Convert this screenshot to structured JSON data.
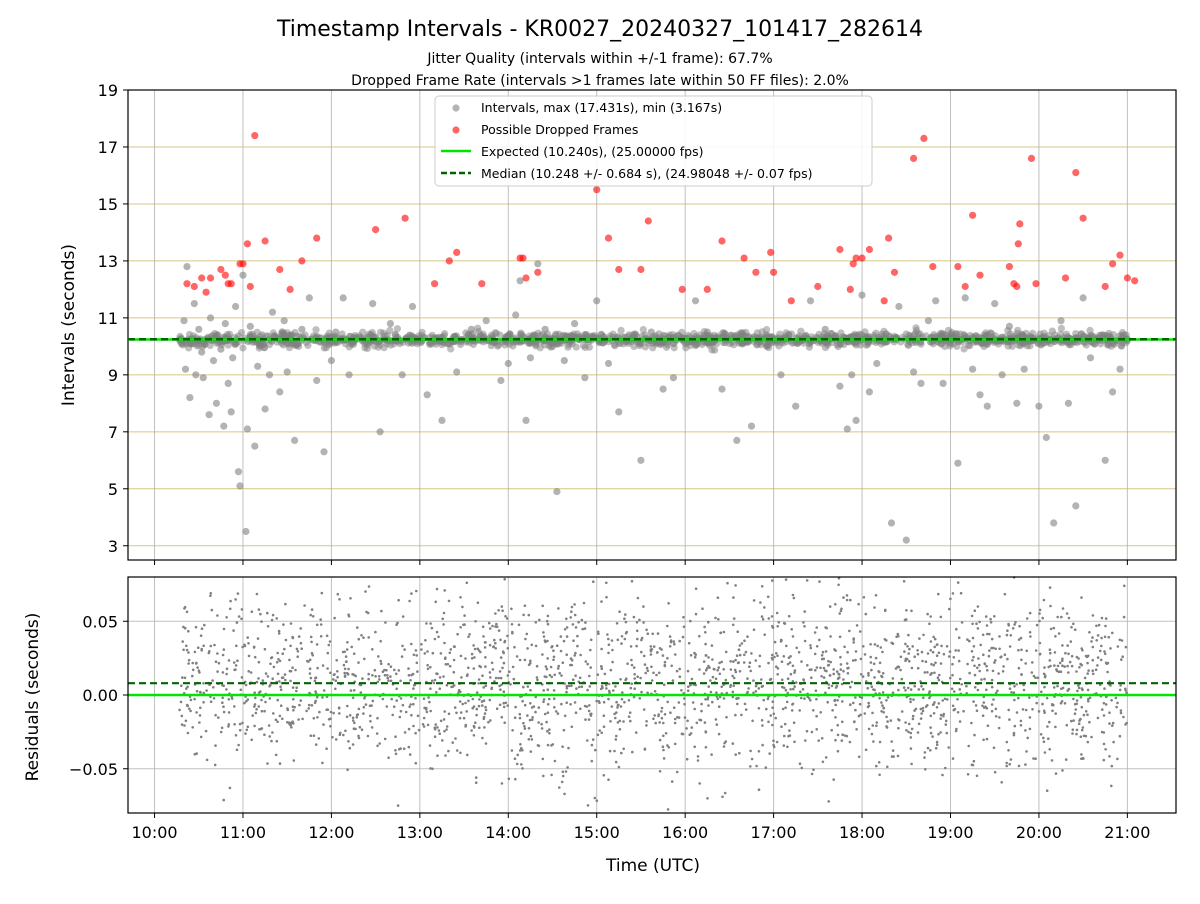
{
  "chart_data": [
    {
      "type": "scatter",
      "title": "Timestamp Intervals - KR0027_20240327_101417_282614",
      "subtitle_lines": [
        "Jitter Quality (intervals within +/-1 frame): 67.7%",
        "Dropped Frame Rate (intervals >1 frames late within 50 FF files): 2.0%"
      ],
      "xlabel": "",
      "ylabel": "Intervals (seconds)",
      "xlim": [
        "09:42",
        "21:33"
      ],
      "ylim": [
        2.5,
        19
      ],
      "x_ticks": [
        "10:00",
        "11:00",
        "12:00",
        "13:00",
        "14:00",
        "15:00",
        "16:00",
        "17:00",
        "18:00",
        "19:00",
        "20:00",
        "21:00"
      ],
      "y_ticks": [
        3,
        5,
        7,
        9,
        11,
        13,
        15,
        17,
        19
      ],
      "grid": true,
      "legend_placement": "upper-center",
      "series": [
        {
          "name": "Intervals, max (17.431s), min (3.167s)",
          "kind": "scatter",
          "color": "#808080",
          "x": [
            "10:20",
            "10:21",
            "10:22",
            "10:24",
            "10:25",
            "10:27",
            "10:28",
            "10:30",
            "10:32",
            "10:33",
            "10:35",
            "10:37",
            "10:38",
            "10:40",
            "10:42",
            "10:43",
            "10:45",
            "10:47",
            "10:48",
            "10:50",
            "10:52",
            "10:53",
            "10:55",
            "10:57",
            "10:58",
            "11:00",
            "11:02",
            "11:03",
            "11:05",
            "11:08",
            "11:10",
            "11:13",
            "11:15",
            "11:18",
            "11:20",
            "11:25",
            "11:28",
            "11:30",
            "11:35",
            "11:40",
            "11:45",
            "11:50",
            "11:55",
            "12:00",
            "12:03",
            "12:08",
            "12:12",
            "12:20",
            "12:28",
            "12:33",
            "12:40",
            "12:48",
            "12:55",
            "13:05",
            "13:15",
            "13:25",
            "13:35",
            "13:45",
            "13:55",
            "14:00",
            "14:05",
            "14:08",
            "14:12",
            "14:15",
            "14:20",
            "14:25",
            "14:30",
            "14:33",
            "14:38",
            "14:45",
            "14:52",
            "15:00",
            "15:08",
            "15:15",
            "15:22",
            "15:30",
            "15:37",
            "15:45",
            "15:52",
            "16:00",
            "16:07",
            "16:15",
            "16:25",
            "16:35",
            "16:45",
            "16:55",
            "17:05",
            "17:15",
            "17:25",
            "17:35",
            "17:45",
            "17:50",
            "17:53",
            "17:56",
            "18:00",
            "18:05",
            "18:10",
            "18:15",
            "18:20",
            "18:25",
            "18:30",
            "18:35",
            "18:40",
            "18:45",
            "18:50",
            "18:55",
            "19:00",
            "19:05",
            "19:10",
            "19:15",
            "19:20",
            "19:25",
            "19:30",
            "19:35",
            "19:40",
            "19:45",
            "19:50",
            "19:55",
            "20:00",
            "20:05",
            "20:10",
            "20:15",
            "20:20",
            "20:25",
            "20:30",
            "20:35",
            "20:40",
            "20:45",
            "20:50",
            "20:55",
            "21:00"
          ],
          "y": [
            10.9,
            9.2,
            12.8,
            8.2,
            10.1,
            11.5,
            9.0,
            10.6,
            9.8,
            8.9,
            10.2,
            7.6,
            11.0,
            9.5,
            8.0,
            10.4,
            9.9,
            7.2,
            10.8,
            8.7,
            7.7,
            9.6,
            11.4,
            5.6,
            5.1,
            12.5,
            3.5,
            7.1,
            10.7,
            6.5,
            9.3,
            10.4,
            7.8,
            9.0,
            11.2,
            8.4,
            10.9,
            9.1,
            6.7,
            10.6,
            11.7,
            8.8,
            6.3,
            9.5,
            10.5,
            11.7,
            9.0,
            10.3,
            11.5,
            7.0,
            10.8,
            9.0,
            11.4,
            8.3,
            7.4,
            9.1,
            10.6,
            10.9,
            8.8,
            9.4,
            11.1,
            12.3,
            7.4,
            9.6,
            12.9,
            10.6,
            10.0,
            4.9,
            9.5,
            10.8,
            8.9,
            11.6,
            9.4,
            7.7,
            10.4,
            6.0,
            10.5,
            8.5,
            8.9,
            10.1,
            11.6,
            10.5,
            8.5,
            6.7,
            7.2,
            10.4,
            9.0,
            7.9,
            11.6,
            10.6,
            8.6,
            7.1,
            9.0,
            7.4,
            11.8,
            8.4,
            9.4,
            10.3,
            3.8,
            11.4,
            3.2,
            9.1,
            8.7,
            10.9,
            11.6,
            8.7,
            10.1,
            5.9,
            11.7,
            9.2,
            8.3,
            7.9,
            11.5,
            9.0,
            10.7,
            8.0,
            9.2,
            10.2,
            7.9,
            6.8,
            3.8,
            10.9,
            8.0,
            4.4,
            11.7,
            9.6,
            10.3,
            6.0,
            8.4,
            9.2,
            10.2
          ]
        },
        {
          "name": "Possible Dropped Frames",
          "kind": "scatter",
          "color": "#ff0000",
          "x": [
            "10:22",
            "10:27",
            "10:32",
            "10:35",
            "10:38",
            "10:45",
            "10:48",
            "10:50",
            "10:52",
            "10:58",
            "11:00",
            "11:03",
            "11:05",
            "11:08",
            "11:15",
            "11:25",
            "11:32",
            "11:40",
            "11:50",
            "12:30",
            "12:50",
            "13:10",
            "13:20",
            "13:25",
            "13:42",
            "14:08",
            "14:10",
            "14:12",
            "14:20",
            "15:00",
            "15:08",
            "15:15",
            "15:30",
            "15:35",
            "15:58",
            "16:15",
            "16:25",
            "16:40",
            "16:48",
            "16:58",
            "17:00",
            "17:12",
            "17:30",
            "17:45",
            "17:52",
            "17:54",
            "17:56",
            "18:00",
            "18:05",
            "18:15",
            "18:18",
            "18:22",
            "18:35",
            "18:42",
            "18:48",
            "19:05",
            "19:10",
            "19:15",
            "19:20",
            "19:40",
            "19:43",
            "19:45",
            "19:46",
            "19:47",
            "19:55",
            "19:58",
            "20:18",
            "20:25",
            "20:30",
            "20:45",
            "20:50",
            "20:55",
            "21:00",
            "21:05"
          ],
          "y": [
            12.2,
            12.1,
            12.4,
            11.9,
            12.4,
            12.7,
            12.5,
            12.2,
            12.2,
            12.9,
            12.9,
            13.6,
            12.1,
            17.4,
            13.7,
            12.7,
            12.0,
            13.0,
            13.8,
            14.1,
            14.5,
            12.2,
            13.0,
            13.3,
            12.2,
            13.1,
            13.1,
            12.4,
            12.6,
            15.5,
            13.8,
            12.7,
            12.7,
            14.4,
            12.0,
            12.0,
            13.7,
            13.1,
            12.6,
            13.3,
            12.6,
            11.6,
            12.1,
            13.4,
            12.0,
            12.9,
            13.1,
            13.1,
            13.4,
            11.6,
            13.8,
            12.6,
            16.6,
            17.3,
            12.8,
            12.8,
            12.1,
            14.6,
            12.5,
            12.8,
            12.2,
            12.1,
            13.6,
            14.3,
            16.6,
            12.2,
            12.4,
            16.1,
            14.5,
            12.1,
            12.9,
            13.2,
            12.4,
            12.3
          ]
        },
        {
          "name": "Expected (10.240s), (25.00000 fps)",
          "kind": "hline",
          "color": "#00e600",
          "y": 10.24
        },
        {
          "name": "Median (10.248 +/- 0.684 s), (24.98048 +/- 0.07 fps)",
          "kind": "hline",
          "color": "#006400",
          "y": 10.248
        }
      ]
    },
    {
      "type": "scatter",
      "title": "",
      "xlabel": "Time (UTC)",
      "ylabel": "Residuals (seconds)",
      "xlim": [
        "09:42",
        "21:33"
      ],
      "ylim": [
        -0.08,
        0.08
      ],
      "x_ticks": [
        "10:00",
        "11:00",
        "12:00",
        "13:00",
        "14:00",
        "15:00",
        "16:00",
        "17:00",
        "18:00",
        "19:00",
        "20:00",
        "21:00"
      ],
      "y_ticks": [
        0.05,
        0.0,
        -0.05
      ],
      "y_tick_labels": [
        "0.05",
        "0.00",
        "−0.05"
      ],
      "grid": true,
      "series": [
        {
          "name": "",
          "kind": "scatter-dense",
          "color": "#808080",
          "x_range": [
            "10:17",
            "21:00"
          ],
          "y_range": [
            -0.08,
            0.08
          ],
          "center": 0.008,
          "count": 2400
        },
        {
          "name": "",
          "kind": "hline",
          "color": "#00e600",
          "y": 0.0
        },
        {
          "name": "",
          "kind": "hline",
          "color": "#006400",
          "y": 0.008
        }
      ]
    }
  ]
}
